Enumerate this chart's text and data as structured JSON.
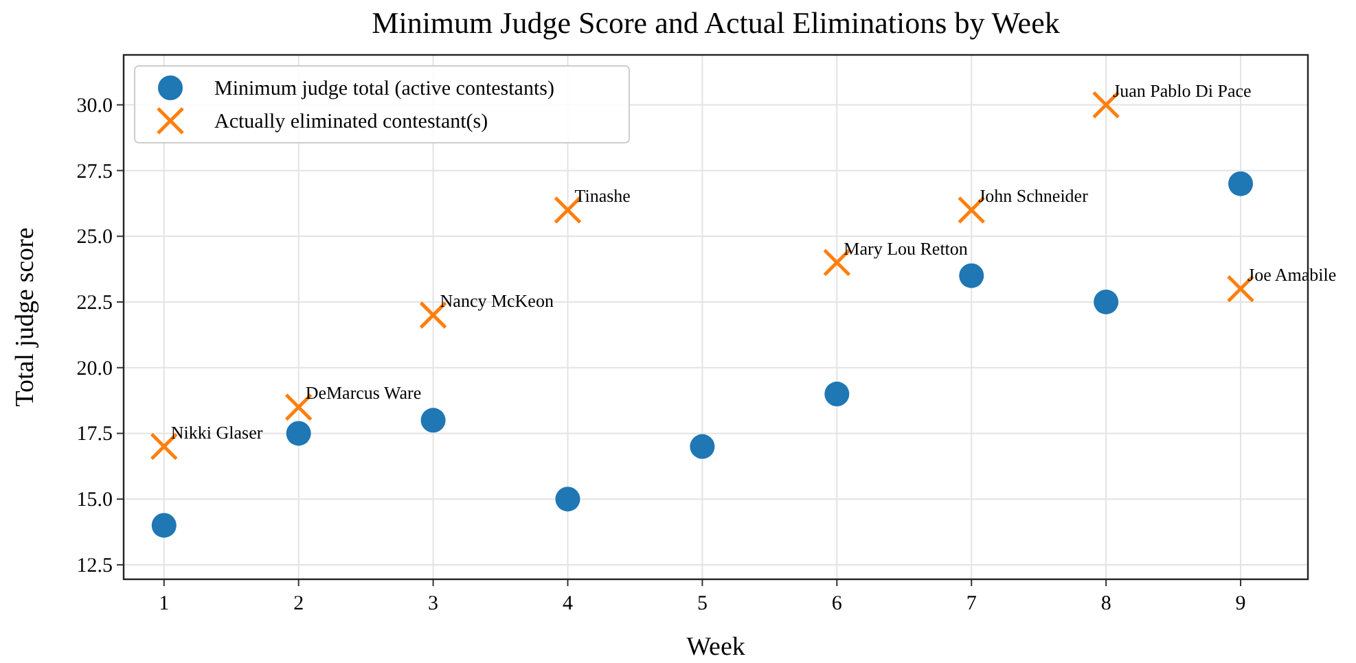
{
  "chart_data": {
    "type": "scatter",
    "title": "Minimum Judge Score and Actual Eliminations by Week",
    "xlabel": "Week",
    "ylabel": "Total judge score",
    "xlim": [
      0.7,
      9.5
    ],
    "xticks": [
      1,
      2,
      3,
      4,
      5,
      6,
      7,
      8,
      9
    ],
    "ylim": [
      11.95,
      31.9
    ],
    "yticks": [
      {
        "value": 12.5,
        "label": "12.5"
      },
      {
        "value": 15,
        "label": "15.0"
      },
      {
        "value": 17.5,
        "label": "17.5"
      },
      {
        "value": 20,
        "label": "20.0"
      },
      {
        "value": 22.5,
        "label": "22.5"
      },
      {
        "value": 25,
        "label": "25.0"
      },
      {
        "value": 27.5,
        "label": "27.5"
      },
      {
        "value": 30,
        "label": "30.0"
      }
    ],
    "grid": true,
    "legend": "top left",
    "series": [
      {
        "name": "Minimum judge total (active contestants)",
        "color": "#1f77b4",
        "marker": "circle",
        "x": [
          1,
          2,
          3,
          4,
          5,
          6,
          7,
          8,
          9
        ],
        "values": [
          14,
          17.5,
          18,
          15,
          17,
          19,
          23.5,
          22.5,
          27
        ]
      },
      {
        "name": "Actually eliminated contestant(s)",
        "color": "#ff7f0e",
        "marker": "cross",
        "x": [
          1,
          2,
          3,
          4,
          6,
          7,
          8,
          9
        ],
        "values": [
          17,
          18.5,
          22,
          26,
          24,
          26,
          30,
          23
        ]
      }
    ],
    "annotations": [
      {
        "text": "Nikki Glaser",
        "x": 1,
        "y": 17
      },
      {
        "text": "DeMarcus Ware",
        "x": 2,
        "y": 18.5
      },
      {
        "text": "Nancy McKeon",
        "x": 3,
        "y": 22
      },
      {
        "text": "Tinashe",
        "x": 4,
        "y": 26
      },
      {
        "text": "Mary Lou Retton",
        "x": 6,
        "y": 24
      },
      {
        "text": "John Schneider",
        "x": 7,
        "y": 26
      },
      {
        "text": "Juan Pablo Di Pace",
        "x": 8,
        "y": 30
      },
      {
        "text": "Joe Amabile",
        "x": 9,
        "y": 23
      }
    ]
  }
}
